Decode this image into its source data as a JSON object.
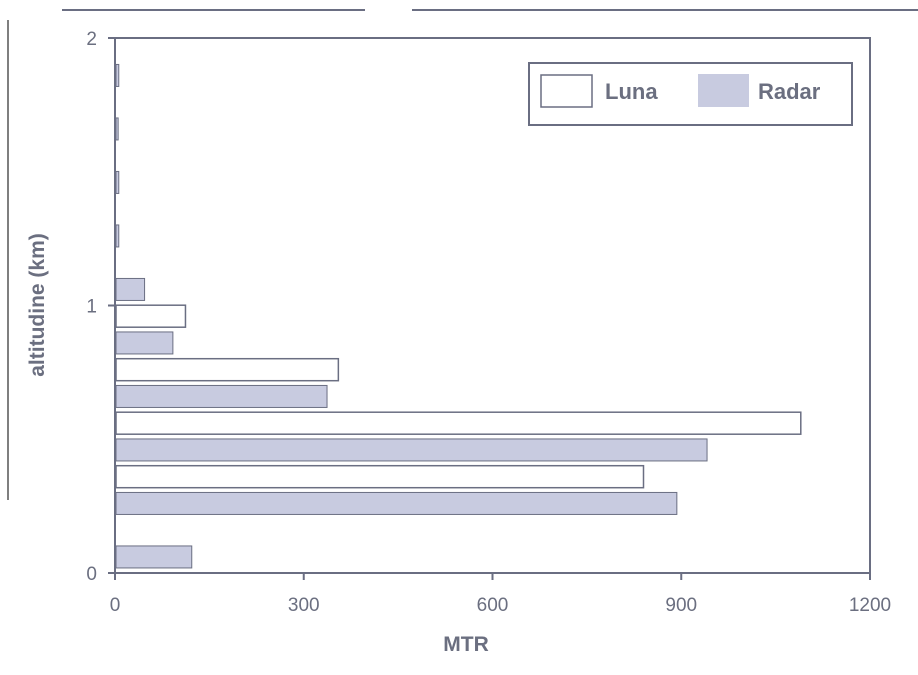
{
  "chart_data": {
    "type": "bar",
    "orientation": "horizontal",
    "xlabel": "MTR",
    "ylabel": "altitudine (km)",
    "xlim": [
      0,
      1200
    ],
    "ylim": [
      0,
      2
    ],
    "x_ticks": [
      "0",
      "300",
      "600",
      "900",
      "1200"
    ],
    "y_ticks": [
      "0",
      "1",
      "2"
    ],
    "grid": false,
    "legend_position": "top-right",
    "colors": {
      "luna": "#ffffff",
      "radar": "#c8cbe0",
      "stroke": "#6a6e82",
      "text": "#6b6f80"
    },
    "series": [
      {
        "name": "Luna",
        "points": [
          {
            "altitude": 0.36,
            "value": 840
          },
          {
            "altitude": 0.56,
            "value": 1090
          },
          {
            "altitude": 0.76,
            "value": 355
          },
          {
            "altitude": 0.96,
            "value": 112
          }
        ]
      },
      {
        "name": "Radar",
        "points": [
          {
            "altitude": 0.06,
            "value": 122
          },
          {
            "altitude": 0.26,
            "value": 893
          },
          {
            "altitude": 0.46,
            "value": 941
          },
          {
            "altitude": 0.66,
            "value": 337
          },
          {
            "altitude": 0.86,
            "value": 92
          },
          {
            "altitude": 1.06,
            "value": 47
          },
          {
            "altitude": 1.26,
            "value": 6
          },
          {
            "altitude": 1.46,
            "value": 6
          },
          {
            "altitude": 1.66,
            "value": 5
          },
          {
            "altitude": 1.86,
            "value": 6
          }
        ]
      }
    ]
  }
}
